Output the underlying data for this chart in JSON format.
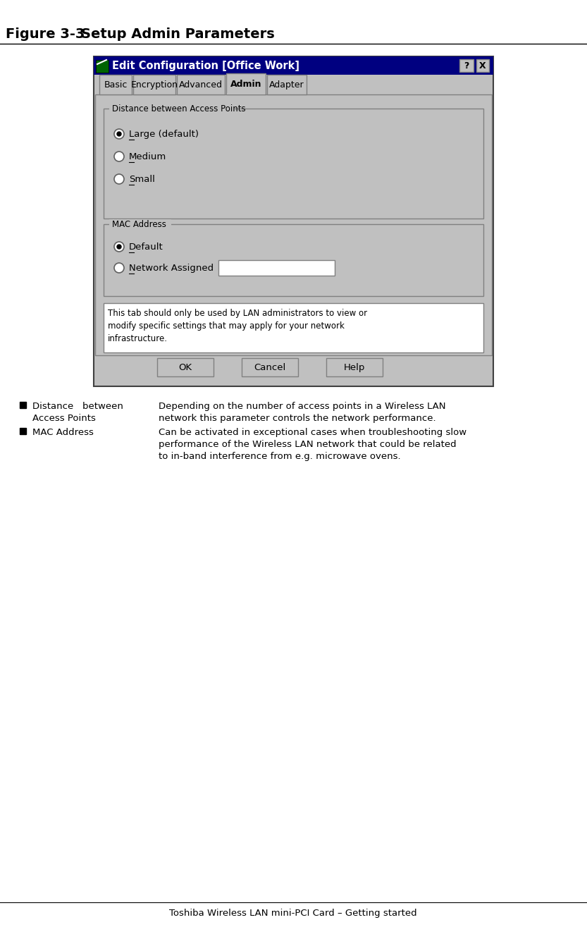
{
  "title": "Figure 3-3",
  "title_label": "Setup Admin Parameters",
  "window_title": "Edit Configuration [Office Work]",
  "tabs": [
    "Basic",
    "Encryption",
    "Advanced",
    "Admin",
    "Adapter"
  ],
  "active_tab": "Admin",
  "group1_label": "Distance between Access Points",
  "radio1_options": [
    "Large (default)",
    "Medium",
    "Small"
  ],
  "radio1_selected": 0,
  "group2_label": "MAC Address",
  "radio2_options": [
    "Default",
    "Network Assigned"
  ],
  "radio2_selected": 0,
  "info_text": "This tab should only be used by LAN administrators to view or\nmodify specific settings that may apply for your network\ninfrastructure.",
  "buttons": [
    "OK",
    "Cancel",
    "Help"
  ],
  "bullet1_label_line1": "Distance   between",
  "bullet1_label_line2": "Access Points",
  "bullet1_desc_line1": "Depending on the number of access points in a Wireless LAN",
  "bullet1_desc_line2": "network this parameter controls the network performance.",
  "bullet2_label": "MAC Address",
  "bullet2_desc_line1": "Can be activated in exceptional cases when troubleshooting slow",
  "bullet2_desc_line2": "performance of the Wireless LAN network that could be related",
  "bullet2_desc_line3": "to in-band interference from e.g. microwave ovens.",
  "footer": "Toshiba Wireless LAN mini-PCI Card – Getting started",
  "bg_color": "#ffffff",
  "dialog_bg": "#c0c0c0",
  "titlebar_color": "#000080",
  "titlebar_text_color": "#ffffff"
}
